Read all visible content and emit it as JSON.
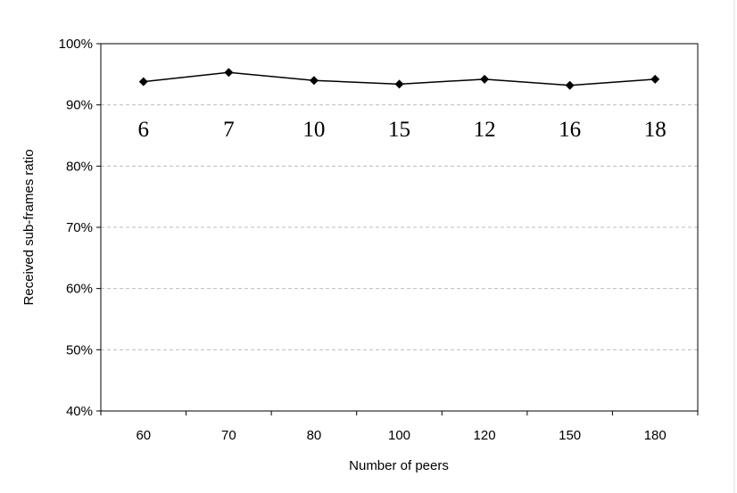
{
  "chart_data": {
    "type": "line",
    "xlabel": "Number of peers",
    "ylabel": "Received sub-frames ratio",
    "categories": [
      "60",
      "70",
      "80",
      "100",
      "120",
      "150",
      "180"
    ],
    "series": [
      {
        "values": [
          93.8,
          95.3,
          94.0,
          93.4,
          94.2,
          93.2,
          94.2
        ]
      }
    ],
    "annotations": [
      "6",
      "7",
      "10",
      "15",
      "12",
      "16",
      "18"
    ],
    "y_ticks": [
      "40%",
      "50%",
      "60%",
      "70%",
      "80%",
      "90%",
      "100%"
    ],
    "ylim": [
      40,
      100
    ],
    "grid": true,
    "legend": "none",
    "marker": "diamond",
    "colors": {
      "line": "#000000",
      "grid": "#bdbdbd"
    }
  }
}
